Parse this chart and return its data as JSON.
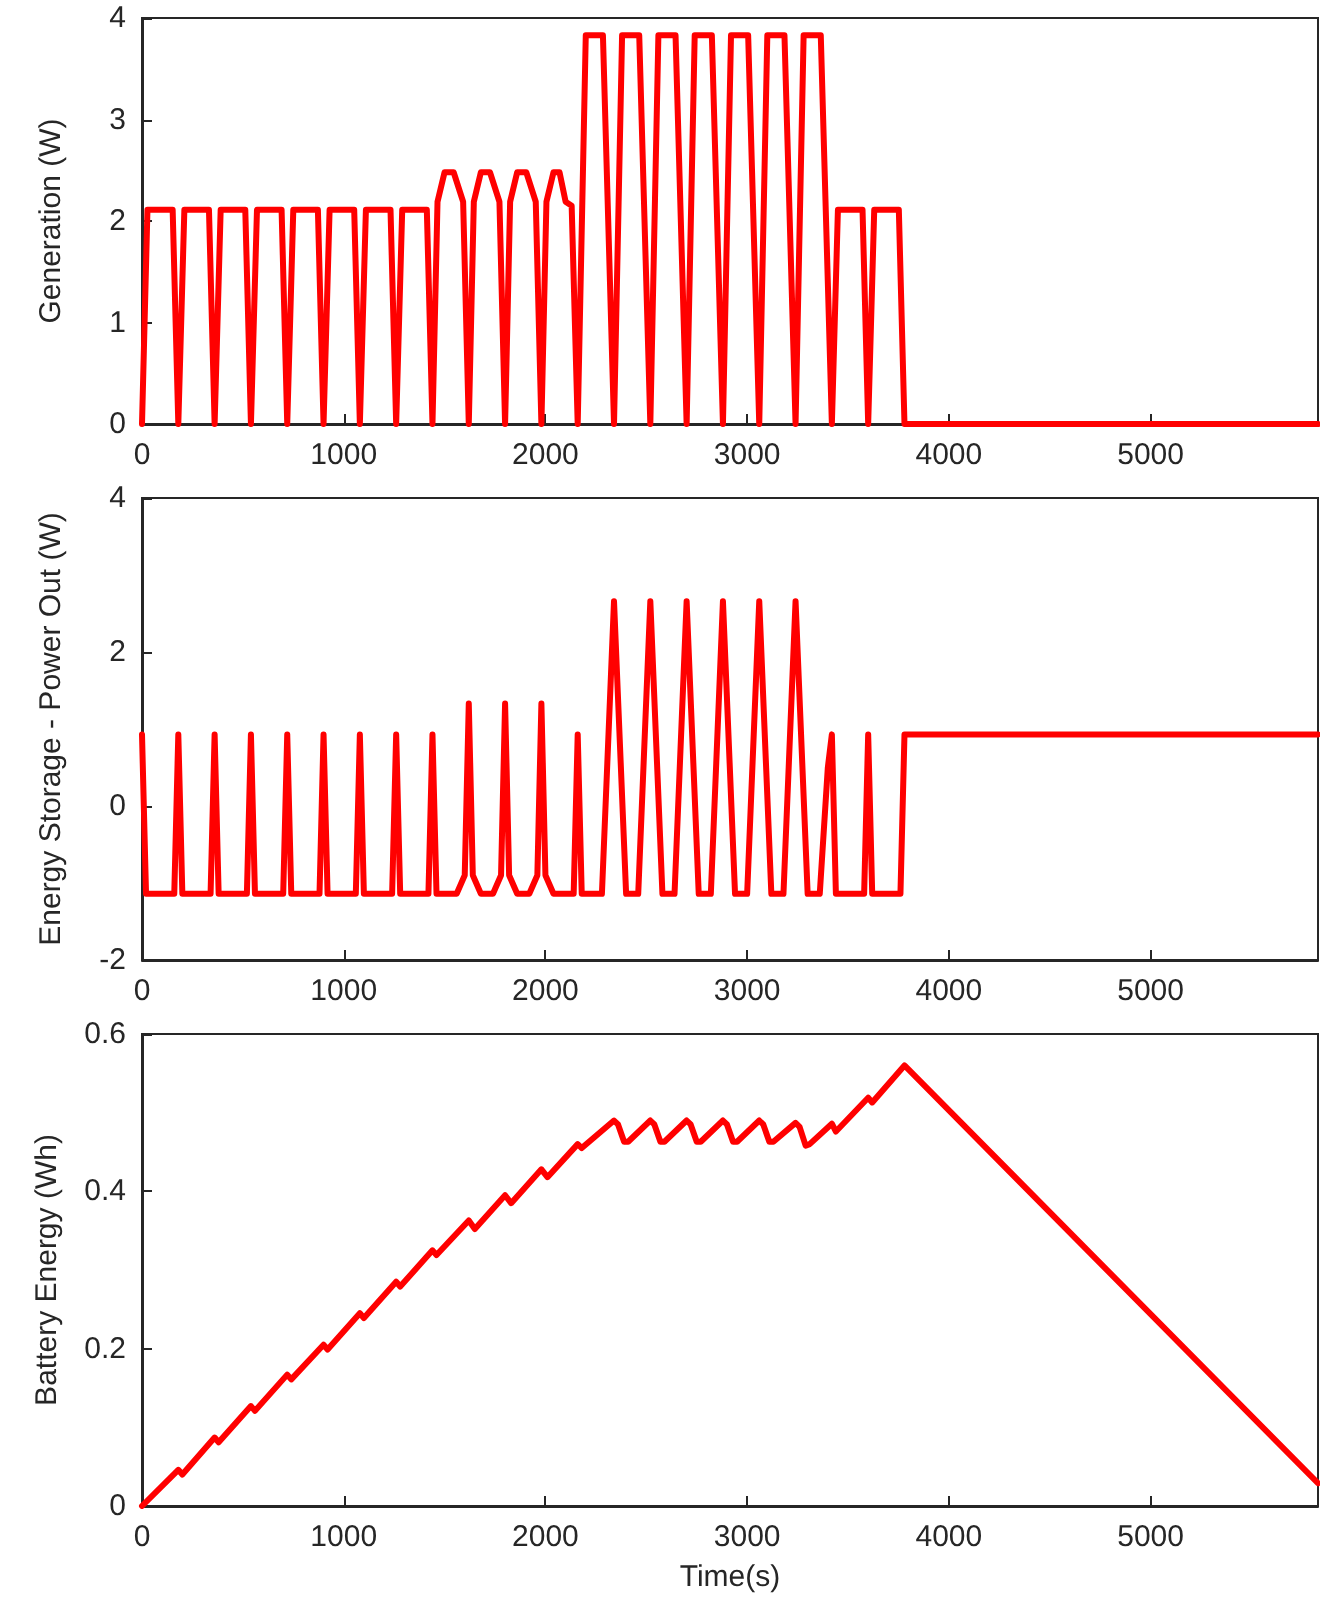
{
  "chart_data": [
    {
      "type": "line",
      "ylabel": "Generation (W)",
      "xlim": [
        0,
        5830
      ],
      "xticks": [
        0,
        1000,
        2000,
        3000,
        4000,
        5000
      ],
      "ylim": [
        0,
        4
      ],
      "yticks": [
        0,
        1,
        2,
        3,
        4
      ],
      "grid": false,
      "line_style": "solid",
      "x": [
        0,
        27,
        152,
        180,
        210,
        332,
        360,
        390,
        512,
        540,
        570,
        692,
        720,
        750,
        872,
        900,
        930,
        1052,
        1080,
        1110,
        1232,
        1260,
        1290,
        1412,
        1440,
        1465,
        1500,
        1545,
        1592,
        1620,
        1645,
        1680,
        1725,
        1772,
        1800,
        1825,
        1860,
        1905,
        1952,
        1980,
        2005,
        2040,
        2070,
        2100,
        2130,
        2160,
        2200,
        2285,
        2340,
        2380,
        2465,
        2520,
        2560,
        2645,
        2700,
        2740,
        2825,
        2880,
        2920,
        3005,
        3060,
        3100,
        3185,
        3240,
        3280,
        3365,
        3420,
        3450,
        3572,
        3600,
        3630,
        3752,
        3780,
        5830
      ],
      "series": [
        {
          "color": "#ff0000",
          "values": [
            0,
            2.11,
            2.11,
            0,
            2.11,
            2.11,
            0,
            2.11,
            2.11,
            0,
            2.11,
            2.11,
            0,
            2.11,
            2.11,
            0,
            2.11,
            2.11,
            0,
            2.11,
            2.11,
            0,
            2.11,
            2.11,
            0,
            2.19,
            2.48,
            2.48,
            2.19,
            0,
            2.19,
            2.48,
            2.48,
            2.19,
            0,
            2.19,
            2.48,
            2.48,
            2.19,
            0,
            2.19,
            2.48,
            2.48,
            2.19,
            2.15,
            0,
            3.83,
            3.83,
            0,
            3.83,
            3.83,
            0,
            3.83,
            3.83,
            0,
            3.83,
            3.83,
            0,
            3.83,
            3.83,
            0,
            3.83,
            3.83,
            0,
            3.83,
            3.83,
            0,
            2.11,
            2.11,
            0,
            2.11,
            2.11,
            0,
            0
          ]
        }
      ]
    },
    {
      "type": "line",
      "ylabel": "Energy Storage - Power Out (W)",
      "xlim": [
        0,
        5830
      ],
      "xticks": [
        0,
        1000,
        2000,
        3000,
        4000,
        5000
      ],
      "ylim": [
        -2,
        4
      ],
      "yticks": [
        -2,
        0,
        2,
        4
      ],
      "grid": false,
      "line_style": "solid",
      "x": [
        0,
        20,
        160,
        180,
        200,
        340,
        360,
        380,
        520,
        540,
        560,
        700,
        720,
        740,
        880,
        900,
        920,
        1060,
        1080,
        1100,
        1240,
        1260,
        1280,
        1420,
        1440,
        1460,
        1560,
        1600,
        1620,
        1640,
        1680,
        1740,
        1780,
        1800,
        1820,
        1860,
        1920,
        1960,
        1980,
        2000,
        2040,
        2140,
        2160,
        2180,
        2280,
        2340,
        2400,
        2460,
        2520,
        2580,
        2640,
        2700,
        2760,
        2820,
        2880,
        2940,
        3000,
        3060,
        3120,
        3180,
        3240,
        3300,
        3360,
        3400,
        3420,
        3440,
        3580,
        3600,
        3620,
        3760,
        3780,
        5830
      ],
      "series": [
        {
          "color": "#ff0000",
          "values": [
            0.93,
            -1.14,
            -1.14,
            0.93,
            -1.14,
            -1.14,
            0.93,
            -1.14,
            -1.14,
            0.93,
            -1.14,
            -1.14,
            0.93,
            -1.14,
            -1.14,
            0.93,
            -1.14,
            -1.14,
            0.93,
            -1.14,
            -1.14,
            0.93,
            -1.14,
            -1.14,
            0.93,
            -1.14,
            -1.14,
            -0.9,
            1.33,
            -0.9,
            -1.14,
            -1.14,
            -0.9,
            1.33,
            -0.9,
            -1.14,
            -1.14,
            -0.9,
            1.33,
            -0.9,
            -1.14,
            -1.14,
            0.93,
            -1.14,
            -1.14,
            2.66,
            -1.14,
            -1.14,
            2.66,
            -1.14,
            -1.14,
            2.66,
            -1.14,
            -1.14,
            2.66,
            -1.14,
            -1.14,
            2.66,
            -1.14,
            -1.14,
            2.66,
            -1.14,
            -1.14,
            0.5,
            0.93,
            -1.14,
            -1.14,
            0.93,
            -1.14,
            -1.14,
            0.93,
            0.93
          ]
        }
      ]
    },
    {
      "type": "line",
      "xlabel": "Time(s)",
      "ylabel": "Battery Energy (Wh)",
      "xlim": [
        0,
        5830
      ],
      "xticks": [
        0,
        1000,
        2000,
        3000,
        4000,
        5000
      ],
      "ylim": [
        0,
        0.6
      ],
      "yticks": [
        0,
        0.2,
        0.4,
        0.6
      ],
      "grid": false,
      "line_style": "solid",
      "x": [
        0,
        180,
        200,
        360,
        380,
        540,
        560,
        720,
        740,
        900,
        920,
        1080,
        1100,
        1260,
        1280,
        1440,
        1460,
        1620,
        1650,
        1800,
        1830,
        1980,
        2010,
        2160,
        2180,
        2340,
        2360,
        2390,
        2410,
        2520,
        2540,
        2570,
        2590,
        2700,
        2720,
        2750,
        2770,
        2880,
        2900,
        2930,
        2950,
        3060,
        3080,
        3110,
        3130,
        3240,
        3260,
        3290,
        3310,
        3420,
        3440,
        3600,
        3620,
        3780,
        5830
      ],
      "series": [
        {
          "color": "#ff0000",
          "values": [
            0,
            0.046,
            0.04,
            0.087,
            0.081,
            0.127,
            0.121,
            0.167,
            0.161,
            0.205,
            0.199,
            0.245,
            0.239,
            0.285,
            0.279,
            0.325,
            0.319,
            0.363,
            0.352,
            0.395,
            0.385,
            0.428,
            0.418,
            0.46,
            0.455,
            0.49,
            0.485,
            0.463,
            0.463,
            0.49,
            0.485,
            0.463,
            0.463,
            0.49,
            0.485,
            0.463,
            0.463,
            0.49,
            0.485,
            0.463,
            0.463,
            0.49,
            0.485,
            0.463,
            0.463,
            0.487,
            0.482,
            0.458,
            0.46,
            0.486,
            0.476,
            0.519,
            0.513,
            0.56,
            0.029
          ]
        }
      ]
    }
  ]
}
